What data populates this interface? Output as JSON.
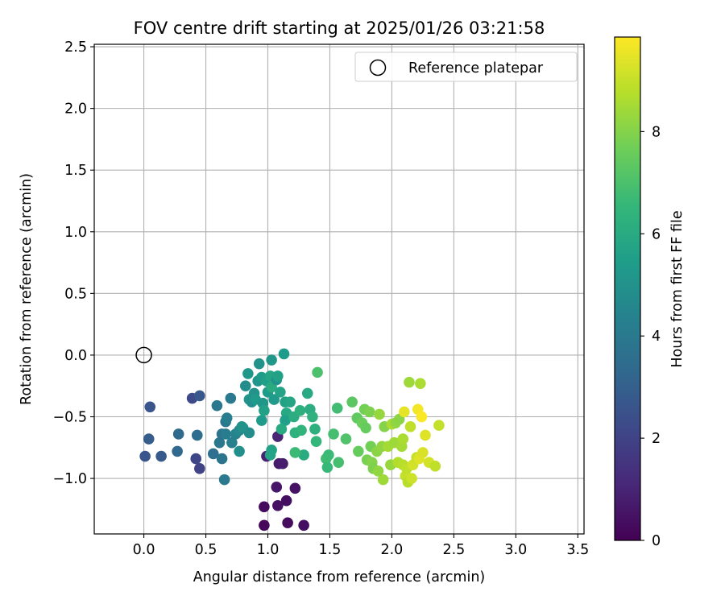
{
  "chart_data": {
    "type": "scatter",
    "title": "FOV centre drift starting at 2025/01/26 03:21:58",
    "xlabel": "Angular distance from reference (arcmin)",
    "ylabel": "Rotation from reference (arcmin)",
    "xlim": [
      -0.4,
      3.55
    ],
    "ylim": [
      -1.45,
      2.52
    ],
    "xticks": [
      0.0,
      0.5,
      1.0,
      1.5,
      2.0,
      2.5,
      3.0,
      3.5
    ],
    "xtick_labels": [
      "0.0",
      "0.5",
      "1.0",
      "1.5",
      "2.0",
      "2.5",
      "3.0",
      "3.5"
    ],
    "yticks": [
      -1.0,
      -0.5,
      0.0,
      0.5,
      1.0,
      1.5,
      2.0,
      2.5
    ],
    "ytick_labels": [
      "−1.0",
      "−0.5",
      "0.0",
      "0.5",
      "1.0",
      "1.5",
      "2.0",
      "2.5"
    ],
    "grid": true,
    "legend": {
      "position": "top-right",
      "entries": [
        "Reference platepar"
      ]
    },
    "reference_point": {
      "x": 0.0,
      "y": 0.0,
      "label": "Reference platepar"
    },
    "colorbar": {
      "label": "Hours from first FF file",
      "range": [
        0,
        9.85
      ],
      "ticks": [
        0,
        2,
        4,
        6,
        8
      ],
      "tick_labels": [
        "0",
        "2",
        "4",
        "6",
        "8"
      ],
      "colormap": "viridis",
      "colors": [
        "#440154",
        "#482878",
        "#3e4989",
        "#31688e",
        "#26828e",
        "#1f9e89",
        "#35b779",
        "#6ece58",
        "#b5de2b",
        "#fde725"
      ]
    },
    "points": [
      {
        "x": 0.97,
        "y": -1.38,
        "h": 0.2
      },
      {
        "x": 1.16,
        "y": -1.36,
        "h": 0.3
      },
      {
        "x": 1.29,
        "y": -1.38,
        "h": 0.4
      },
      {
        "x": 0.97,
        "y": -1.23,
        "h": 0.3
      },
      {
        "x": 1.08,
        "y": -1.22,
        "h": 0.5
      },
      {
        "x": 1.15,
        "y": -1.18,
        "h": 0.4
      },
      {
        "x": 1.07,
        "y": -1.07,
        "h": 0.6
      },
      {
        "x": 1.22,
        "y": -1.08,
        "h": 0.5
      },
      {
        "x": 1.09,
        "y": -0.88,
        "h": 0.7
      },
      {
        "x": 1.12,
        "y": -0.88,
        "h": 0.8
      },
      {
        "x": 0.99,
        "y": -0.82,
        "h": 0.9
      },
      {
        "x": 1.08,
        "y": -0.66,
        "h": 1.0
      },
      {
        "x": 0.45,
        "y": -0.92,
        "h": 2.0
      },
      {
        "x": 0.42,
        "y": -0.84,
        "h": 2.1
      },
      {
        "x": 0.01,
        "y": -0.82,
        "h": 2.6
      },
      {
        "x": 0.14,
        "y": -0.82,
        "h": 2.8
      },
      {
        "x": 0.04,
        "y": -0.68,
        "h": 2.9
      },
      {
        "x": 0.39,
        "y": -0.35,
        "h": 2.2
      },
      {
        "x": 0.05,
        "y": -0.42,
        "h": 2.6
      },
      {
        "x": 0.45,
        "y": -0.33,
        "h": 2.7
      },
      {
        "x": 0.27,
        "y": -0.78,
        "h": 3.3
      },
      {
        "x": 0.28,
        "y": -0.64,
        "h": 3.4
      },
      {
        "x": 0.43,
        "y": -0.65,
        "h": 3.5
      },
      {
        "x": 0.56,
        "y": -0.8,
        "h": 3.6
      },
      {
        "x": 0.63,
        "y": -0.84,
        "h": 3.8
      },
      {
        "x": 0.65,
        "y": -1.01,
        "h": 4.0
      },
      {
        "x": 0.61,
        "y": -0.71,
        "h": 3.9
      },
      {
        "x": 0.63,
        "y": -0.64,
        "h": 3.7
      },
      {
        "x": 0.66,
        "y": -0.64,
        "h": 4.1
      },
      {
        "x": 0.66,
        "y": -0.54,
        "h": 3.9
      },
      {
        "x": 0.67,
        "y": -0.51,
        "h": 4.2
      },
      {
        "x": 0.59,
        "y": -0.41,
        "h": 3.9
      },
      {
        "x": 0.7,
        "y": -0.35,
        "h": 4.0
      },
      {
        "x": 0.71,
        "y": -0.71,
        "h": 4.3
      },
      {
        "x": 0.74,
        "y": -0.64,
        "h": 4.4
      },
      {
        "x": 0.77,
        "y": -0.61,
        "h": 4.6
      },
      {
        "x": 0.8,
        "y": -0.59,
        "h": 4.7
      },
      {
        "x": 0.77,
        "y": -0.78,
        "h": 4.9
      },
      {
        "x": 0.79,
        "y": -0.58,
        "h": 5.0
      },
      {
        "x": 0.85,
        "y": -0.63,
        "h": 4.8
      },
      {
        "x": 0.82,
        "y": -0.25,
        "h": 4.8
      },
      {
        "x": 0.85,
        "y": -0.36,
        "h": 5.1
      },
      {
        "x": 0.84,
        "y": -0.15,
        "h": 5.2
      },
      {
        "x": 0.87,
        "y": -0.38,
        "h": 4.9
      },
      {
        "x": 0.89,
        "y": -0.31,
        "h": 5.0
      },
      {
        "x": 0.9,
        "y": -0.36,
        "h": 5.3
      },
      {
        "x": 0.92,
        "y": -0.21,
        "h": 5.1
      },
      {
        "x": 0.93,
        "y": -0.07,
        "h": 5.0
      },
      {
        "x": 0.95,
        "y": -0.18,
        "h": 5.4
      },
      {
        "x": 0.96,
        "y": -0.39,
        "h": 5.2
      },
      {
        "x": 0.95,
        "y": -0.53,
        "h": 5.3
      },
      {
        "x": 0.97,
        "y": -0.45,
        "h": 5.6
      },
      {
        "x": 0.99,
        "y": -0.21,
        "h": 5.5
      },
      {
        "x": 1.0,
        "y": -0.3,
        "h": 5.4
      },
      {
        "x": 1.03,
        "y": -0.04,
        "h": 5.2
      },
      {
        "x": 1.02,
        "y": -0.17,
        "h": 5.8
      },
      {
        "x": 1.03,
        "y": -0.26,
        "h": 6.0
      },
      {
        "x": 1.05,
        "y": -0.36,
        "h": 5.3
      },
      {
        "x": 1.07,
        "y": -0.2,
        "h": 5.1
      },
      {
        "x": 1.08,
        "y": -0.17,
        "h": 5.6
      },
      {
        "x": 1.1,
        "y": -0.3,
        "h": 5.7
      },
      {
        "x": 1.13,
        "y": 0.01,
        "h": 5.4
      },
      {
        "x": 1.14,
        "y": -0.38,
        "h": 5.6
      },
      {
        "x": 1.15,
        "y": -0.47,
        "h": 5.9
      },
      {
        "x": 1.18,
        "y": -0.38,
        "h": 5.8
      },
      {
        "x": 1.14,
        "y": -0.53,
        "h": 5.5
      },
      {
        "x": 1.03,
        "y": -0.77,
        "h": 5.6
      },
      {
        "x": 1.02,
        "y": -0.81,
        "h": 5.7
      },
      {
        "x": 1.11,
        "y": -0.6,
        "h": 6.0
      },
      {
        "x": 1.21,
        "y": -0.5,
        "h": 6.1
      },
      {
        "x": 1.22,
        "y": -0.63,
        "h": 6.3
      },
      {
        "x": 1.26,
        "y": -0.45,
        "h": 6.2
      },
      {
        "x": 1.27,
        "y": -0.61,
        "h": 6.4
      },
      {
        "x": 1.29,
        "y": -0.81,
        "h": 6.0
      },
      {
        "x": 1.32,
        "y": -0.31,
        "h": 5.9
      },
      {
        "x": 1.34,
        "y": -0.44,
        "h": 6.1
      },
      {
        "x": 1.36,
        "y": -0.5,
        "h": 6.3
      },
      {
        "x": 1.38,
        "y": -0.6,
        "h": 6.2
      },
      {
        "x": 1.39,
        "y": -0.7,
        "h": 6.5
      },
      {
        "x": 1.22,
        "y": -0.79,
        "h": 6.7
      },
      {
        "x": 1.4,
        "y": -0.14,
        "h": 7.0
      },
      {
        "x": 1.47,
        "y": -0.84,
        "h": 6.8
      },
      {
        "x": 1.48,
        "y": -0.91,
        "h": 6.6
      },
      {
        "x": 1.49,
        "y": -0.81,
        "h": 6.7
      },
      {
        "x": 1.53,
        "y": -0.64,
        "h": 6.9
      },
      {
        "x": 1.56,
        "y": -0.43,
        "h": 6.8
      },
      {
        "x": 1.57,
        "y": -0.87,
        "h": 6.9
      },
      {
        "x": 1.63,
        "y": -0.68,
        "h": 7.1
      },
      {
        "x": 1.68,
        "y": -0.38,
        "h": 7.3
      },
      {
        "x": 1.72,
        "y": -0.51,
        "h": 7.4
      },
      {
        "x": 1.73,
        "y": -0.78,
        "h": 7.5
      },
      {
        "x": 1.76,
        "y": -0.55,
        "h": 7.6
      },
      {
        "x": 1.78,
        "y": -0.44,
        "h": 7.7
      },
      {
        "x": 1.79,
        "y": -0.59,
        "h": 7.5
      },
      {
        "x": 1.8,
        "y": -0.85,
        "h": 7.8
      },
      {
        "x": 1.82,
        "y": -0.46,
        "h": 7.9
      },
      {
        "x": 1.83,
        "y": -0.74,
        "h": 7.7
      },
      {
        "x": 1.84,
        "y": -0.87,
        "h": 8.0
      },
      {
        "x": 1.85,
        "y": -0.92,
        "h": 7.9
      },
      {
        "x": 1.88,
        "y": -0.78,
        "h": 8.1
      },
      {
        "x": 1.9,
        "y": -0.48,
        "h": 8.3
      },
      {
        "x": 1.89,
        "y": -0.94,
        "h": 8.2
      },
      {
        "x": 1.92,
        "y": -0.74,
        "h": 8.2
      },
      {
        "x": 1.93,
        "y": -1.01,
        "h": 8.4
      },
      {
        "x": 1.94,
        "y": -0.58,
        "h": 8.0
      },
      {
        "x": 1.97,
        "y": -0.74,
        "h": 8.5
      },
      {
        "x": 1.99,
        "y": -0.89,
        "h": 8.3
      },
      {
        "x": 2.0,
        "y": -0.56,
        "h": 8.6
      },
      {
        "x": 2.02,
        "y": -0.71,
        "h": 8.4
      },
      {
        "x": 2.03,
        "y": -0.55,
        "h": 8.2
      },
      {
        "x": 2.05,
        "y": -0.87,
        "h": 8.7
      },
      {
        "x": 2.06,
        "y": -0.52,
        "h": 8.1
      },
      {
        "x": 2.08,
        "y": -0.74,
        "h": 8.5
      },
      {
        "x": 2.09,
        "y": -0.68,
        "h": 8.6
      },
      {
        "x": 2.09,
        "y": -0.89,
        "h": 8.8
      },
      {
        "x": 2.1,
        "y": -0.46,
        "h": 9.5
      },
      {
        "x": 2.11,
        "y": -0.98,
        "h": 9.0
      },
      {
        "x": 2.12,
        "y": -0.92,
        "h": 8.9
      },
      {
        "x": 2.13,
        "y": -1.03,
        "h": 8.8
      },
      {
        "x": 2.14,
        "y": -0.22,
        "h": 8.4
      },
      {
        "x": 2.15,
        "y": -0.58,
        "h": 8.9
      },
      {
        "x": 2.16,
        "y": -1.0,
        "h": 9.1
      },
      {
        "x": 2.17,
        "y": -0.89,
        "h": 9.2
      },
      {
        "x": 2.2,
        "y": -0.83,
        "h": 9.0
      },
      {
        "x": 2.21,
        "y": -0.44,
        "h": 9.7
      },
      {
        "x": 2.22,
        "y": -0.84,
        "h": 9.4
      },
      {
        "x": 2.23,
        "y": -0.23,
        "h": 8.6
      },
      {
        "x": 2.24,
        "y": -0.5,
        "h": 9.8
      },
      {
        "x": 2.25,
        "y": -0.79,
        "h": 9.3
      },
      {
        "x": 2.27,
        "y": -0.65,
        "h": 9.4
      },
      {
        "x": 2.3,
        "y": -0.87,
        "h": 9.2
      },
      {
        "x": 2.35,
        "y": -0.9,
        "h": 8.9
      },
      {
        "x": 2.38,
        "y": -0.57,
        "h": 9.0
      }
    ]
  }
}
